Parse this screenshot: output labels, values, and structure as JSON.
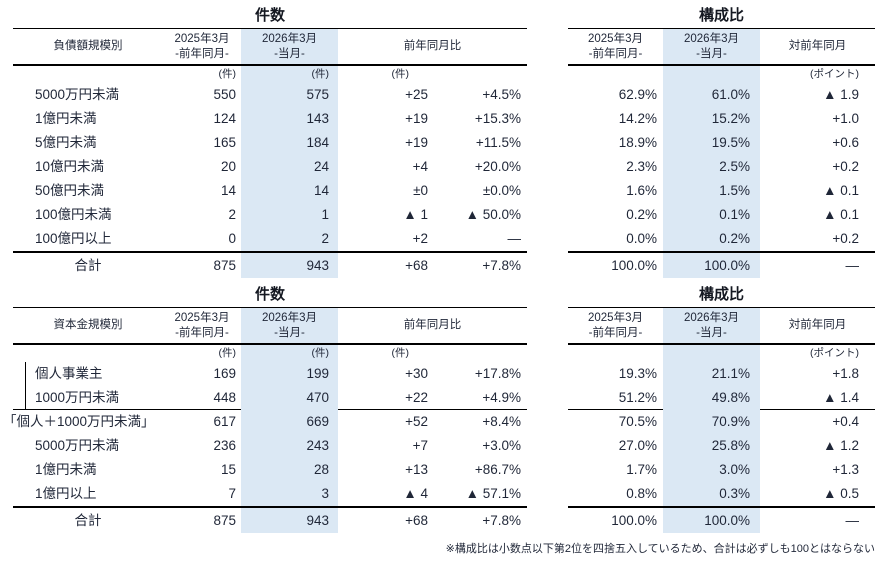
{
  "colors": {
    "highlight": "#dbe8f4",
    "text": "#1f2637"
  },
  "footnote": "※構成比は小数点以下第2位を四捨五入しているため、合計は必ずしも100とはならない",
  "sections": [
    {
      "count_title": "件数",
      "ratio_title": "構成比",
      "row_header": "負債額規模別",
      "col_prev": "2025年3月",
      "col_prev_sub": "-前年同月-",
      "col_curr": "2026年3月",
      "col_curr_sub": "-当月-",
      "col_yoy": "前年同月比",
      "col_vs": "対前年同月",
      "unit_cases": "(件)",
      "unit_points": "(ポイント)",
      "rows": [
        {
          "label": "5000万円未満",
          "prev": "550",
          "curr": "575",
          "diff": "+25",
          "pct": "+4.5%",
          "r_prev": "62.9%",
          "r_curr": "61.0%",
          "r_diff": "▲ 1.9"
        },
        {
          "label": "1億円未満",
          "prev": "124",
          "curr": "143",
          "diff": "+19",
          "pct": "+15.3%",
          "r_prev": "14.2%",
          "r_curr": "15.2%",
          "r_diff": "+1.0"
        },
        {
          "label": "5億円未満",
          "prev": "165",
          "curr": "184",
          "diff": "+19",
          "pct": "+11.5%",
          "r_prev": "18.9%",
          "r_curr": "19.5%",
          "r_diff": "+0.6"
        },
        {
          "label": "10億円未満",
          "prev": "20",
          "curr": "24",
          "diff": "+4",
          "pct": "+20.0%",
          "r_prev": "2.3%",
          "r_curr": "2.5%",
          "r_diff": "+0.2"
        },
        {
          "label": "50億円未満",
          "prev": "14",
          "curr": "14",
          "diff": "±0",
          "pct": "±0.0%",
          "r_prev": "1.6%",
          "r_curr": "1.5%",
          "r_diff": "▲ 0.1"
        },
        {
          "label": "100億円未満",
          "prev": "2",
          "curr": "1",
          "diff": "▲ 1",
          "pct": "▲ 50.0%",
          "r_prev": "0.2%",
          "r_curr": "0.1%",
          "r_diff": "▲ 0.1"
        },
        {
          "label": "100億円以上",
          "prev": "0",
          "curr": "2",
          "diff": "+2",
          "pct": "—",
          "r_prev": "0.0%",
          "r_curr": "0.2%",
          "r_diff": "+0.2"
        }
      ],
      "total": {
        "label": "合計",
        "prev": "875",
        "curr": "943",
        "diff": "+68",
        "pct": "+7.8%",
        "r_prev": "100.0%",
        "r_curr": "100.0%",
        "r_diff": "—"
      }
    },
    {
      "count_title": "件数",
      "ratio_title": "構成比",
      "row_header": "資本金規模別",
      "col_prev": "2025年3月",
      "col_prev_sub": "-前年同月-",
      "col_curr": "2026年3月",
      "col_curr_sub": "-当月-",
      "col_yoy": "前年同月比",
      "col_vs": "対前年同月",
      "unit_cases": "(件)",
      "unit_points": "(ポイント)",
      "rows": [
        {
          "label": "個人事業主",
          "bracket": true,
          "prev": "169",
          "curr": "199",
          "diff": "+30",
          "pct": "+17.8%",
          "r_prev": "19.3%",
          "r_curr": "21.1%",
          "r_diff": "+1.8"
        },
        {
          "label": "1000万円未満",
          "bracket": true,
          "line_below": true,
          "prev": "448",
          "curr": "470",
          "diff": "+22",
          "pct": "+4.9%",
          "r_prev": "51.2%",
          "r_curr": "49.8%",
          "r_diff": "▲ 1.4"
        },
        {
          "label": "「個人＋1000万円未満」",
          "flush": true,
          "prev": "617",
          "curr": "669",
          "diff": "+52",
          "pct": "+8.4%",
          "r_prev": "70.5%",
          "r_curr": "70.9%",
          "r_diff": "+0.4"
        },
        {
          "label": "5000万円未満",
          "prev": "236",
          "curr": "243",
          "diff": "+7",
          "pct": "+3.0%",
          "r_prev": "27.0%",
          "r_curr": "25.8%",
          "r_diff": "▲ 1.2"
        },
        {
          "label": "1億円未満",
          "prev": "15",
          "curr": "28",
          "diff": "+13",
          "pct": "+86.7%",
          "r_prev": "1.7%",
          "r_curr": "3.0%",
          "r_diff": "+1.3"
        },
        {
          "label": "1億円以上",
          "prev": "7",
          "curr": "3",
          "diff": "▲ 4",
          "pct": "▲ 57.1%",
          "r_prev": "0.8%",
          "r_curr": "0.3%",
          "r_diff": "▲ 0.5"
        }
      ],
      "total": {
        "label": "合計",
        "prev": "875",
        "curr": "943",
        "diff": "+68",
        "pct": "+7.8%",
        "r_prev": "100.0%",
        "r_curr": "100.0%",
        "r_diff": "—"
      }
    }
  ]
}
